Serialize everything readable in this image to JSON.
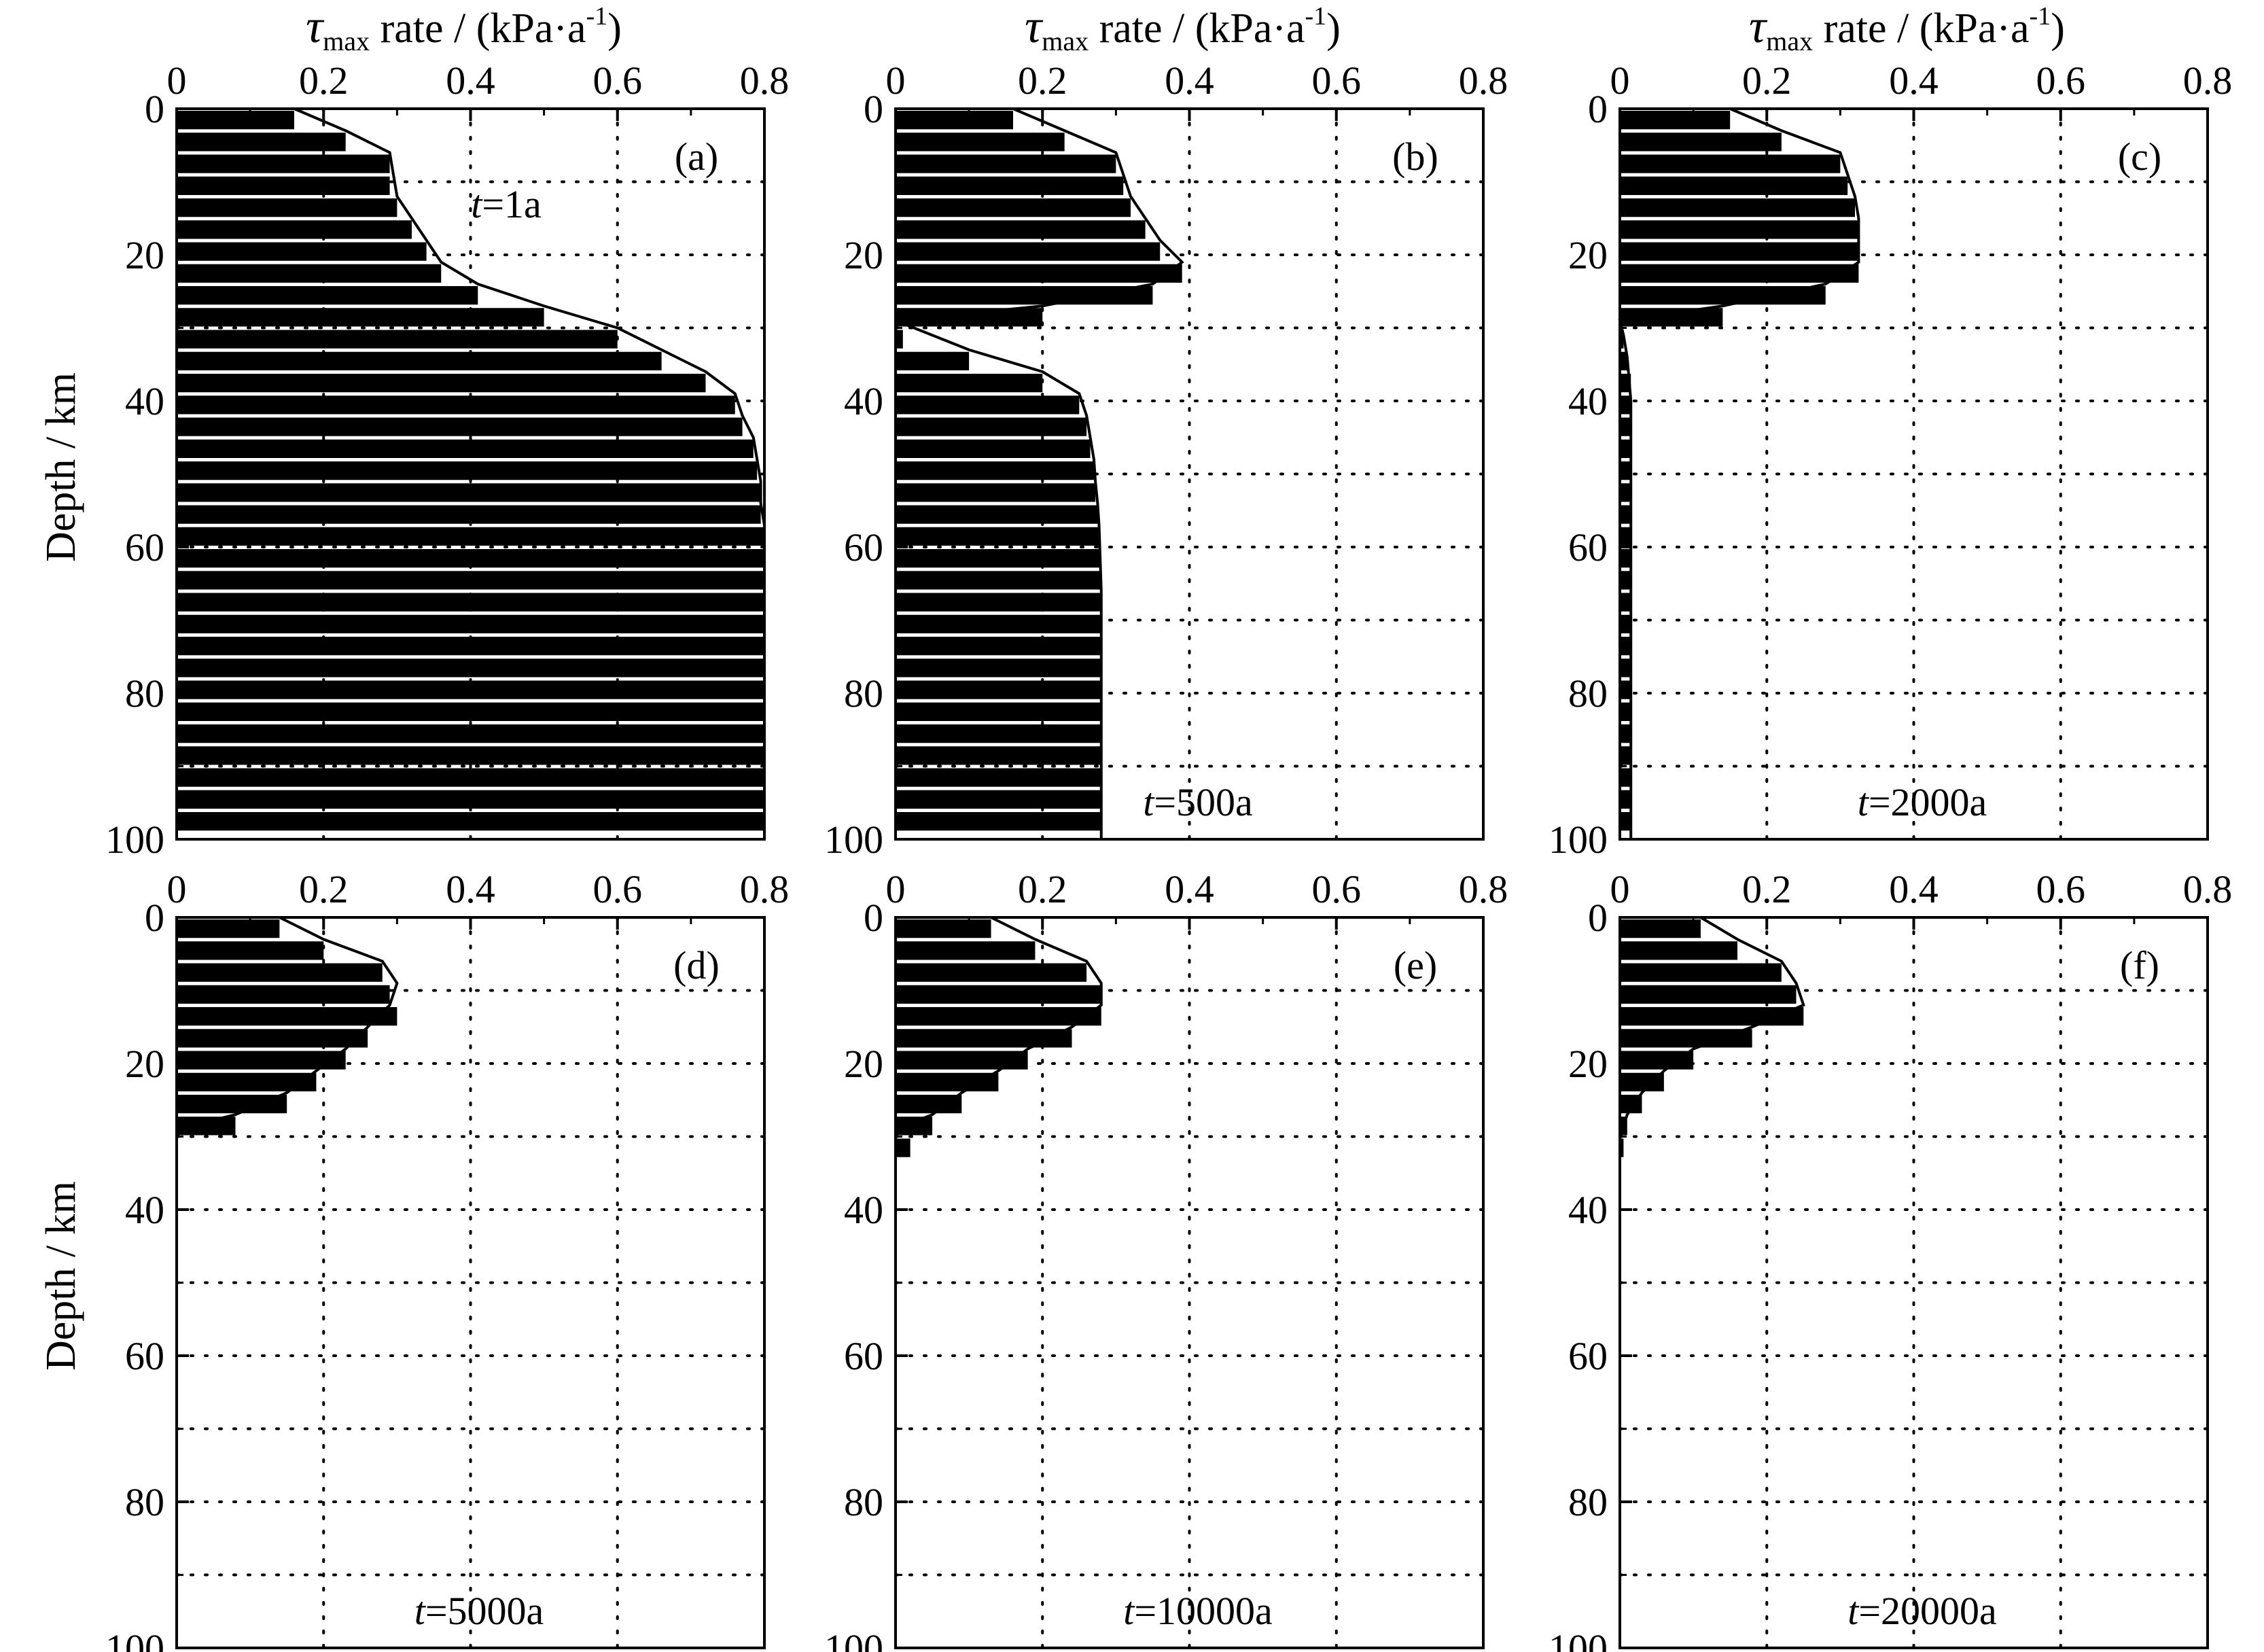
{
  "figure": {
    "x_title_prefix": "τ",
    "x_title_sub": "max",
    "x_title_main": " rate / (kPa·a",
    "x_title_sup": "-1",
    "x_title_close": ")",
    "y_title": "Depth / km",
    "x_ticks": [
      "0",
      "0.2",
      "0.4",
      "0.6",
      "0.8"
    ],
    "y_ticks": [
      "0",
      "20",
      "40",
      "60",
      "80",
      "100"
    ]
  },
  "chart_data": [
    {
      "type": "bar",
      "orientation": "horizontal",
      "panel_label": "(a)",
      "time_label_italic": "t",
      "time_label_rest": "=1a",
      "xlim": [
        0,
        0.8
      ],
      "ylim": [
        0,
        100
      ],
      "grid": true,
      "depth_top": [
        0,
        3,
        6,
        9,
        12,
        15,
        18,
        21,
        24,
        27,
        30,
        33,
        36,
        39,
        42,
        45,
        48,
        51,
        54,
        57,
        60,
        63,
        66,
        69,
        72,
        75,
        78,
        81,
        84,
        87,
        90,
        93,
        96
      ],
      "values": [
        0.16,
        0.23,
        0.29,
        0.29,
        0.3,
        0.32,
        0.34,
        0.36,
        0.41,
        0.5,
        0.6,
        0.66,
        0.72,
        0.76,
        0.77,
        0.785,
        0.79,
        0.795,
        0.795,
        0.8,
        0.8,
        0.8,
        0.8,
        0.8,
        0.8,
        0.8,
        0.8,
        0.8,
        0.8,
        0.8,
        0.8,
        0.8,
        0.8
      ],
      "curve_depth": [
        0,
        3,
        6,
        9,
        12,
        15,
        18,
        21,
        24,
        27,
        30,
        33,
        36,
        39,
        42,
        45,
        48,
        51,
        54,
        57,
        60,
        63,
        66,
        69,
        72,
        75,
        78,
        81,
        84,
        87,
        90,
        93,
        96,
        100
      ],
      "curve_values": [
        0.16,
        0.23,
        0.29,
        0.295,
        0.3,
        0.32,
        0.34,
        0.36,
        0.41,
        0.5,
        0.6,
        0.66,
        0.72,
        0.76,
        0.77,
        0.785,
        0.79,
        0.795,
        0.795,
        0.8,
        0.8,
        0.8,
        0.8,
        0.8,
        0.8,
        0.8,
        0.8,
        0.8,
        0.8,
        0.8,
        0.8,
        0.8,
        0.8,
        0.8
      ]
    },
    {
      "type": "bar",
      "orientation": "horizontal",
      "panel_label": "(b)",
      "time_label_italic": "t",
      "time_label_rest": "=500a",
      "xlim": [
        0,
        0.8
      ],
      "ylim": [
        0,
        100
      ],
      "grid": true,
      "depth_top": [
        0,
        3,
        6,
        9,
        12,
        15,
        18,
        21,
        24,
        27,
        30,
        33,
        36,
        39,
        42,
        45,
        48,
        51,
        54,
        57,
        60,
        63,
        66,
        69,
        72,
        75,
        78,
        81,
        84,
        87,
        90,
        93,
        96
      ],
      "values": [
        0.16,
        0.23,
        0.3,
        0.31,
        0.32,
        0.34,
        0.36,
        0.39,
        0.35,
        0.2,
        0.01,
        0.1,
        0.2,
        0.25,
        0.26,
        0.265,
        0.27,
        0.272,
        0.275,
        0.277,
        0.278,
        0.279,
        0.28,
        0.28,
        0.28,
        0.28,
        0.28,
        0.28,
        0.28,
        0.28,
        0.28,
        0.28,
        0.28
      ],
      "curve_depth": [
        0,
        3,
        6,
        9,
        12,
        15,
        18,
        21,
        24,
        27,
        29,
        31,
        33,
        36,
        39,
        42,
        45,
        48,
        51,
        54,
        57,
        60,
        63,
        66,
        69,
        72,
        75,
        78,
        81,
        84,
        87,
        90,
        93,
        96,
        100
      ],
      "curve_values": [
        0.16,
        0.23,
        0.3,
        0.31,
        0.32,
        0.34,
        0.36,
        0.39,
        0.35,
        0.2,
        0.0,
        0.05,
        0.1,
        0.2,
        0.25,
        0.26,
        0.265,
        0.27,
        0.272,
        0.275,
        0.277,
        0.278,
        0.279,
        0.28,
        0.28,
        0.28,
        0.28,
        0.28,
        0.28,
        0.28,
        0.28,
        0.28,
        0.28,
        0.28,
        0.28
      ]
    },
    {
      "type": "bar",
      "orientation": "horizontal",
      "panel_label": "(c)",
      "time_label_italic": "t",
      "time_label_rest": "=2000a",
      "xlim": [
        0,
        0.8
      ],
      "ylim": [
        0,
        100
      ],
      "grid": true,
      "depth_top": [
        0,
        3,
        6,
        9,
        12,
        15,
        18,
        21,
        24,
        27,
        30,
        33,
        36,
        39,
        42,
        45,
        48,
        51,
        54,
        57,
        60,
        63,
        66,
        69,
        72,
        75,
        78,
        81,
        84,
        87,
        90,
        93,
        96
      ],
      "values": [
        0.15,
        0.22,
        0.3,
        0.31,
        0.32,
        0.325,
        0.325,
        0.325,
        0.28,
        0.14,
        0.005,
        0.01,
        0.015,
        0.015,
        0.015,
        0.015,
        0.015,
        0.015,
        0.015,
        0.015,
        0.015,
        0.015,
        0.015,
        0.015,
        0.015,
        0.015,
        0.015,
        0.015,
        0.015,
        0.015,
        0.015,
        0.015,
        0.015
      ],
      "curve_depth": [
        0,
        3,
        6,
        9,
        12,
        15,
        18,
        21,
        24,
        27,
        29,
        31,
        34,
        40,
        60,
        80,
        100
      ],
      "curve_values": [
        0.15,
        0.22,
        0.3,
        0.31,
        0.32,
        0.325,
        0.325,
        0.325,
        0.28,
        0.14,
        0.0,
        0.005,
        0.01,
        0.015,
        0.015,
        0.015,
        0.015
      ]
    },
    {
      "type": "bar",
      "orientation": "horizontal",
      "panel_label": "(d)",
      "time_label_italic": "t",
      "time_label_rest": "=5000a",
      "xlim": [
        0,
        0.8
      ],
      "ylim": [
        0,
        100
      ],
      "grid": true,
      "depth_top": [
        0,
        3,
        6,
        9,
        12,
        15,
        18,
        21,
        24,
        27,
        30,
        33,
        36,
        39,
        42,
        45,
        48,
        51,
        54,
        57,
        60,
        63,
        66,
        69,
        72,
        75,
        78,
        81,
        84,
        87,
        90,
        93,
        96
      ],
      "values": [
        0.14,
        0.2,
        0.28,
        0.29,
        0.3,
        0.26,
        0.23,
        0.19,
        0.15,
        0.08,
        0,
        0,
        0,
        0,
        0,
        0,
        0,
        0,
        0,
        0,
        0,
        0,
        0,
        0,
        0,
        0,
        0,
        0,
        0,
        0,
        0,
        0,
        0
      ],
      "curve_depth": [
        0,
        3,
        6,
        9,
        12,
        15,
        18,
        21,
        24,
        27,
        29
      ],
      "curve_values": [
        0.14,
        0.2,
        0.28,
        0.3,
        0.29,
        0.26,
        0.23,
        0.19,
        0.15,
        0.08,
        0.0
      ]
    },
    {
      "type": "bar",
      "orientation": "horizontal",
      "panel_label": "(e)",
      "time_label_italic": "t",
      "time_label_rest": "=10000a",
      "xlim": [
        0,
        0.8
      ],
      "ylim": [
        0,
        100
      ],
      "grid": true,
      "depth_top": [
        0,
        3,
        6,
        9,
        12,
        15,
        18,
        21,
        24,
        27,
        30,
        33,
        36,
        39,
        42,
        45,
        48,
        51,
        54,
        57,
        60,
        63,
        66,
        69,
        72,
        75,
        78,
        81,
        84,
        87,
        90,
        93,
        96
      ],
      "values": [
        0.13,
        0.19,
        0.26,
        0.28,
        0.28,
        0.24,
        0.18,
        0.14,
        0.09,
        0.05,
        0.02,
        0,
        0,
        0,
        0,
        0,
        0,
        0,
        0,
        0,
        0,
        0,
        0,
        0,
        0,
        0,
        0,
        0,
        0,
        0,
        0,
        0,
        0
      ],
      "curve_depth": [
        0,
        3,
        6,
        9,
        12,
        15,
        18,
        21,
        24,
        27,
        29
      ],
      "curve_values": [
        0.13,
        0.19,
        0.26,
        0.28,
        0.28,
        0.24,
        0.18,
        0.14,
        0.09,
        0.05,
        0.0
      ]
    },
    {
      "type": "bar",
      "orientation": "horizontal",
      "panel_label": "(f)",
      "time_label_italic": "t",
      "time_label_rest": "=20000a",
      "xlim": [
        0,
        0.8
      ],
      "ylim": [
        0,
        100
      ],
      "grid": true,
      "depth_top": [
        0,
        3,
        6,
        9,
        12,
        15,
        18,
        21,
        24,
        27,
        30,
        33,
        36,
        39,
        42,
        45,
        48,
        51,
        54,
        57,
        60,
        63,
        66,
        69,
        72,
        75,
        78,
        81,
        84,
        87,
        90,
        93,
        96
      ],
      "values": [
        0.11,
        0.16,
        0.22,
        0.24,
        0.25,
        0.18,
        0.1,
        0.06,
        0.03,
        0.01,
        0.005,
        0,
        0,
        0,
        0,
        0,
        0,
        0,
        0,
        0,
        0,
        0,
        0,
        0,
        0,
        0,
        0,
        0,
        0,
        0,
        0,
        0,
        0
      ],
      "curve_depth": [
        0,
        3,
        6,
        9,
        12,
        15,
        18,
        21,
        24,
        27,
        30
      ],
      "curve_values": [
        0.11,
        0.16,
        0.22,
        0.24,
        0.25,
        0.18,
        0.1,
        0.06,
        0.03,
        0.01,
        0.0
      ]
    }
  ]
}
